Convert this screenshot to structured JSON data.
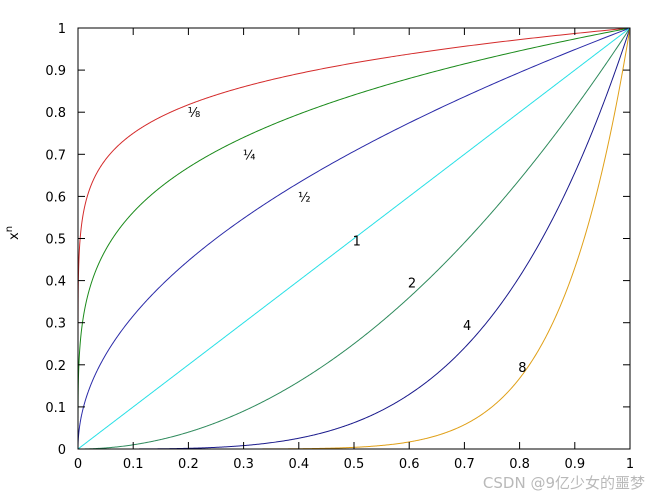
{
  "chart_data": {
    "type": "line",
    "title": "",
    "xlabel": "",
    "ylabel": "x",
    "ylabel_superscript": "n",
    "xlim": [
      0,
      1
    ],
    "ylim": [
      0,
      1
    ],
    "grid": false,
    "x_ticks": [
      "0",
      "0.1",
      "0.2",
      "0.3",
      "0.4",
      "0.5",
      "0.6",
      "0.7",
      "0.8",
      "0.9",
      "1"
    ],
    "y_ticks": [
      "0",
      "0.1",
      "0.2",
      "0.3",
      "0.4",
      "0.5",
      "0.6",
      "0.7",
      "0.8",
      "0.9",
      "1"
    ],
    "function": "y = x^n",
    "series": [
      {
        "label": "⅛",
        "exponent": 0.125,
        "color": "#d42b2b",
        "label_at": [
          0.21,
          0.8
        ]
      },
      {
        "label": "¼",
        "exponent": 0.25,
        "color": "#1a8a1a",
        "label_at": [
          0.31,
          0.7
        ]
      },
      {
        "label": "½",
        "exponent": 0.5,
        "color": "#2a2aa8",
        "label_at": [
          0.41,
          0.6
        ]
      },
      {
        "label": "1",
        "exponent": 1,
        "color": "#29e0e6",
        "label_at": [
          0.505,
          0.495
        ]
      },
      {
        "label": "2",
        "exponent": 2,
        "color": "#2e8a5c",
        "label_at": [
          0.605,
          0.395
        ]
      },
      {
        "label": "4",
        "exponent": 4,
        "color": "#1a1a8c",
        "label_at": [
          0.705,
          0.295
        ]
      },
      {
        "label": "8",
        "exponent": 8,
        "color": "#e0a018",
        "label_at": [
          0.805,
          0.195
        ]
      }
    ]
  },
  "watermark": "CSDN @9亿少女的噩梦"
}
